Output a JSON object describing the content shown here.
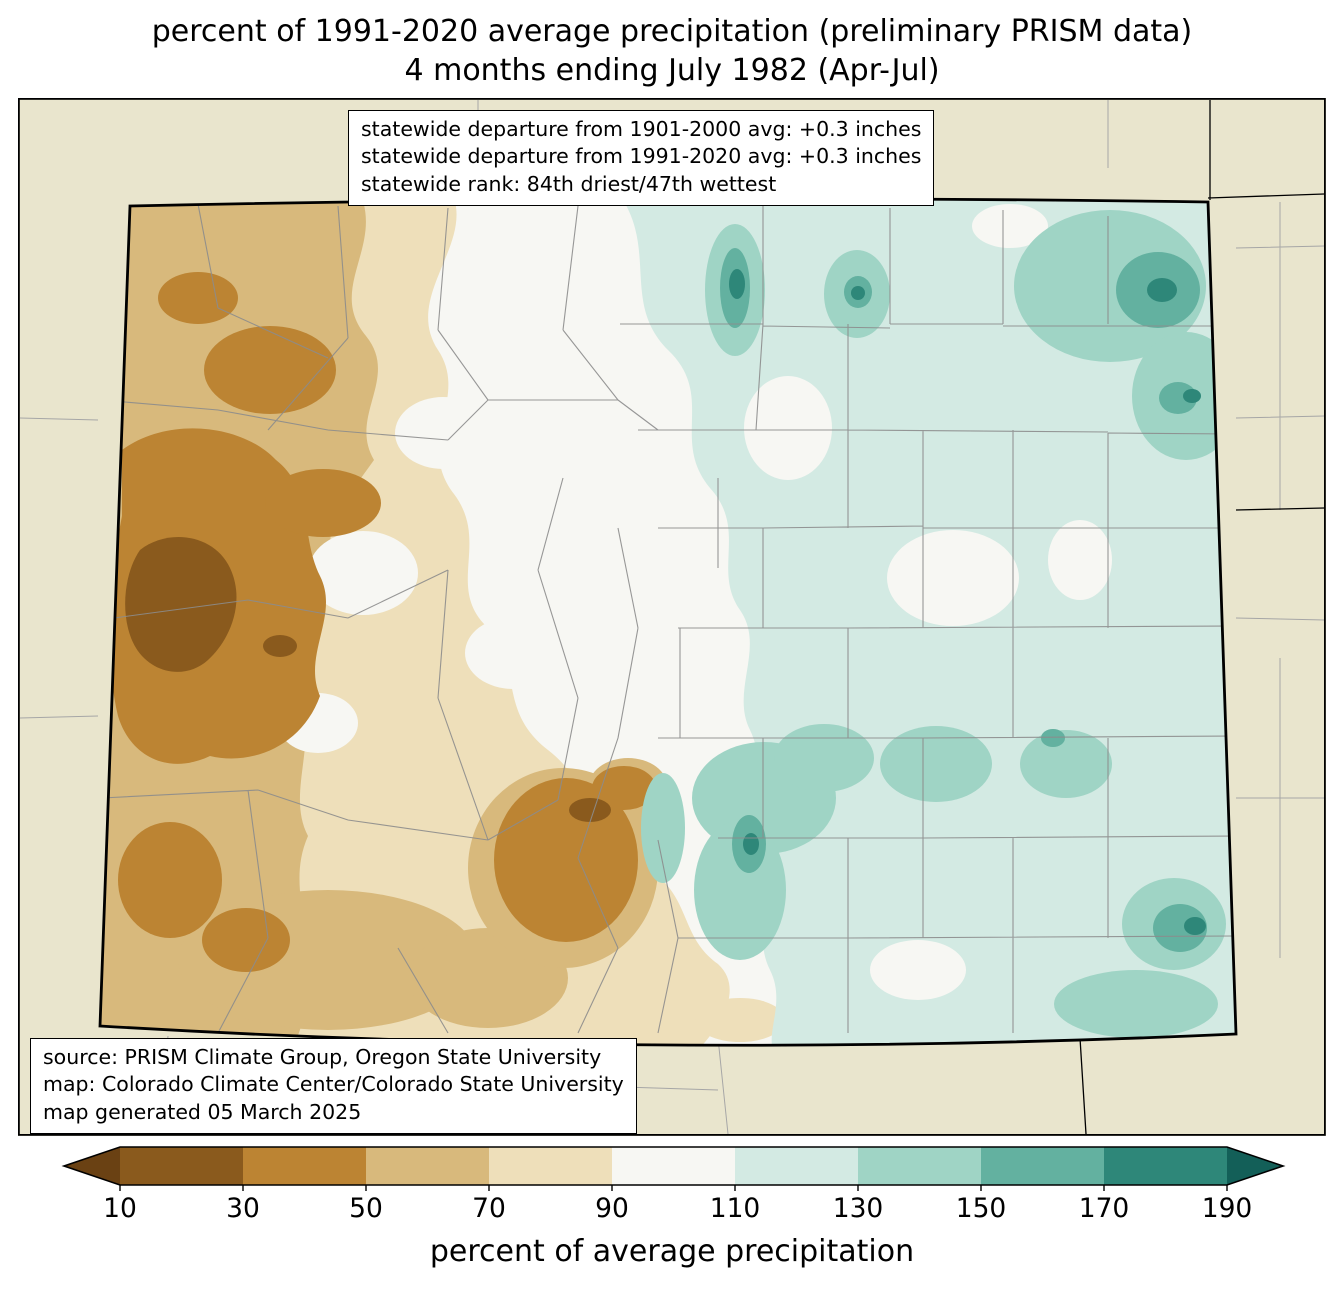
{
  "title": {
    "line1": "percent of 1991-2020 average precipitation (preliminary PRISM data)",
    "line2": "4 months ending July 1982 (Apr-Jul)"
  },
  "stats_box": {
    "lines": [
      "statewide departure from 1901-2000 avg: +0.3 inches",
      "statewide departure from 1991-2020 avg: +0.3 inches",
      "statewide rank: 84th driest/47th wettest"
    ]
  },
  "source_box": {
    "lines": [
      "source: PRISM Climate Group, Oregon State University",
      "map: Colorado Climate Center/Colorado State University",
      "map generated 05 March 2025"
    ]
  },
  "colorbar": {
    "label": "percent of average precipitation",
    "tick_labels": [
      "10",
      "30",
      "50",
      "70",
      "90",
      "110",
      "130",
      "150",
      "170",
      "190"
    ],
    "segments": [
      "b10_30",
      "b30_50",
      "b50_70",
      "b70_90",
      "b90_110",
      "b110_130",
      "b130_150",
      "b150_170",
      "b170_190"
    ],
    "under_key": "under",
    "over_key": "over"
  },
  "palette": {
    "outside": "#e9e5cd",
    "under": "#6a4113",
    "b10_30": "#8a5a1d",
    "b30_50": "#bc8433",
    "b50_70": "#d8b97c",
    "b70_90": "#eedfba",
    "b90_110": "#f7f7f3",
    "b110_130": "#d3eae3",
    "b130_150": "#9fd4c5",
    "b150_170": "#63b1a0",
    "b170_190": "#2e8779",
    "over": "#135f58",
    "county_line": "#8c8c8c",
    "neighbor_line": "#a6a6a6",
    "state_border": "#000000"
  }
}
